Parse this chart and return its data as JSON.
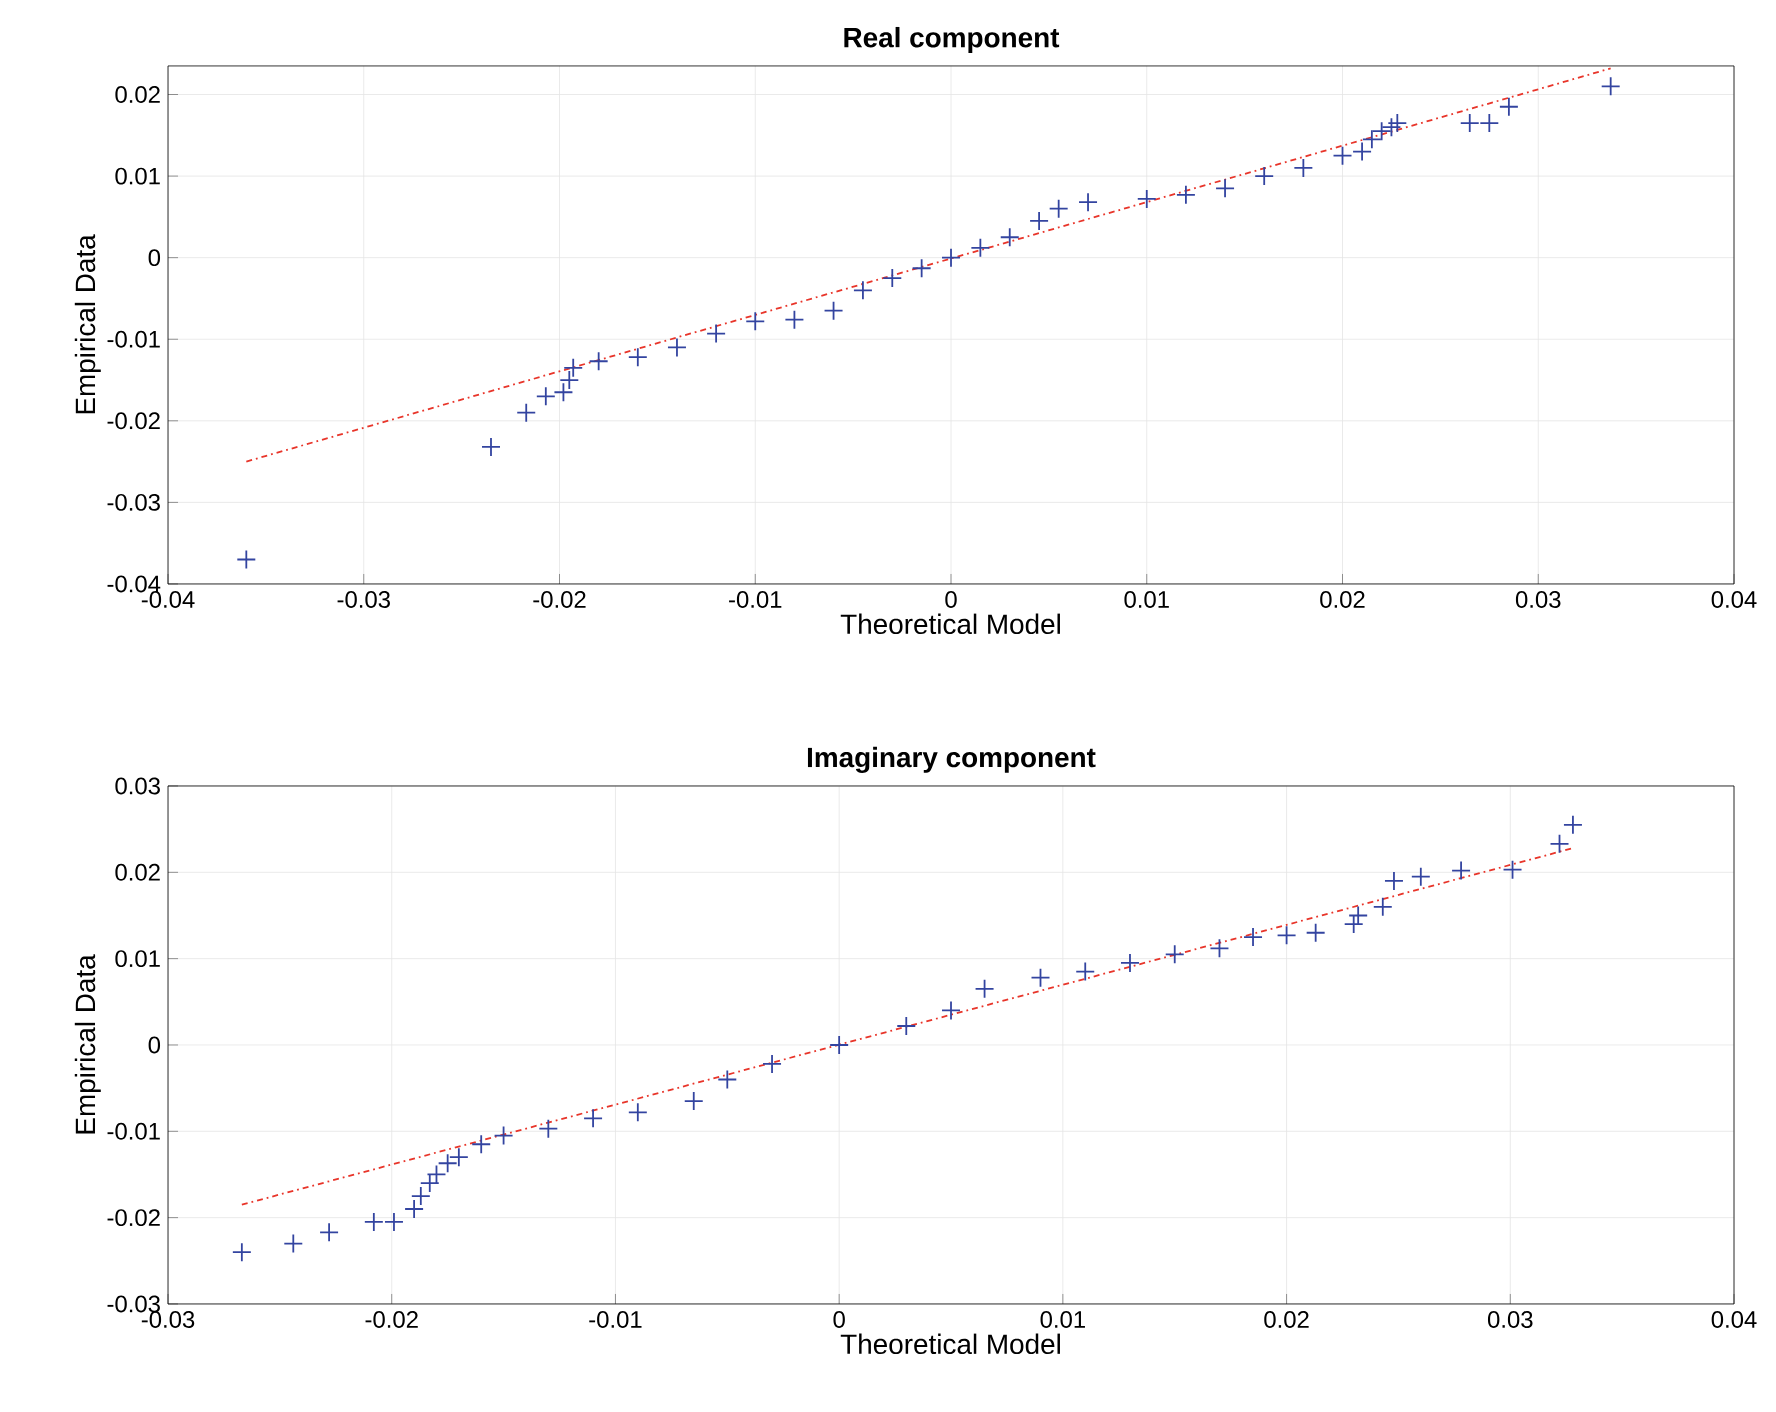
{
  "chart_data": [
    {
      "type": "scatter",
      "title": "**Real component**",
      "xlabel": "Theoretical Model",
      "ylabel": "Empirical Data",
      "xlim": [
        -0.04,
        0.04
      ],
      "ylim": [
        -0.04,
        0.0235
      ],
      "xticks": [
        -0.04,
        -0.03,
        -0.02,
        -0.01,
        0,
        0.01,
        0.02,
        0.03,
        0.04
      ],
      "yticks": [
        -0.04,
        -0.03,
        -0.02,
        -0.01,
        0,
        0.01,
        0.02
      ],
      "grid": true,
      "series": [
        {
          "marker": "cross",
          "color": "#3344a0",
          "x": [
            -0.036,
            -0.0235,
            -0.0217,
            -0.0207,
            -0.0198,
            -0.0195,
            -0.0193,
            -0.018,
            -0.016,
            -0.014,
            -0.012,
            -0.01,
            -0.008,
            -0.006,
            -0.0045,
            -0.003,
            -0.0015,
            0,
            0.0015,
            0.003,
            0.0045,
            0.0055,
            0.007,
            0.01,
            0.012,
            0.014,
            0.016,
            0.018,
            0.02,
            0.021,
            0.0215,
            0.022,
            0.0225,
            0.0228,
            0.0265,
            0.0275,
            0.0285,
            0.0337
          ],
          "values": [
            -0.037,
            -0.0232,
            -0.019,
            -0.017,
            -0.0165,
            -0.015,
            -0.0135,
            -0.0127,
            -0.0122,
            -0.011,
            -0.0093,
            -0.0078,
            -0.0076,
            -0.0065,
            -0.004,
            -0.0025,
            -0.0013,
            0,
            0.0012,
            0.0025,
            0.0045,
            0.006,
            0.0068,
            0.0072,
            0.0077,
            0.0085,
            0.01,
            0.011,
            0.0125,
            0.013,
            0.0145,
            0.0155,
            0.016,
            0.0165,
            0.0165,
            0.0165,
            0.0185,
            0.021
          ]
        },
        {
          "type": "line",
          "color": "#e8352a",
          "line_style": "dashed",
          "x": [
            -0.036,
            0.0337
          ],
          "values": [
            -0.025,
            0.0232
          ]
        }
      ]
    },
    {
      "type": "scatter",
      "title": "**Imaginary component**",
      "xlabel": "Theoretical Model",
      "ylabel": "Empirical Data",
      "xlim": [
        -0.03,
        0.04
      ],
      "ylim": [
        -0.03,
        0.03
      ],
      "xticks": [
        -0.03,
        -0.02,
        -0.01,
        0,
        0.01,
        0.02,
        0.03,
        0.04
      ],
      "yticks": [
        -0.03,
        -0.02,
        -0.01,
        0,
        0.01,
        0.02,
        0.03
      ],
      "grid": true,
      "series": [
        {
          "marker": "cross",
          "color": "#3344a0",
          "x": [
            -0.0267,
            -0.0244,
            -0.0228,
            -0.0208,
            -0.0199,
            -0.019,
            -0.0187,
            -0.0183,
            -0.018,
            -0.0175,
            -0.017,
            -0.016,
            -0.015,
            -0.013,
            -0.011,
            -0.009,
            -0.0065,
            -0.005,
            -0.003,
            0,
            0.003,
            0.005,
            0.0065,
            0.009,
            0.011,
            0.013,
            0.015,
            0.017,
            0.0185,
            0.02,
            0.0213,
            0.023,
            0.0232,
            0.0243,
            0.0248,
            0.026,
            0.0278,
            0.0301,
            0.0322,
            0.0328
          ],
          "values": [
            -0.024,
            -0.023,
            -0.0217,
            -0.0205,
            -0.0205,
            -0.019,
            -0.0175,
            -0.016,
            -0.015,
            -0.0137,
            -0.013,
            -0.0115,
            -0.0105,
            -0.0097,
            -0.0085,
            -0.0078,
            -0.0065,
            -0.004,
            -0.0022,
            0,
            0.0022,
            0.004,
            0.0065,
            0.0078,
            0.0085,
            0.0095,
            0.0105,
            0.0112,
            0.0125,
            0.0127,
            0.013,
            0.014,
            0.015,
            0.016,
            0.019,
            0.0195,
            0.0202,
            0.0203,
            0.0233,
            0.0255
          ]
        },
        {
          "type": "line",
          "color": "#e8352a",
          "line_style": "dashed",
          "x": [
            -0.0267,
            0.0328
          ],
          "values": [
            -0.0185,
            0.0228
          ]
        }
      ]
    }
  ]
}
